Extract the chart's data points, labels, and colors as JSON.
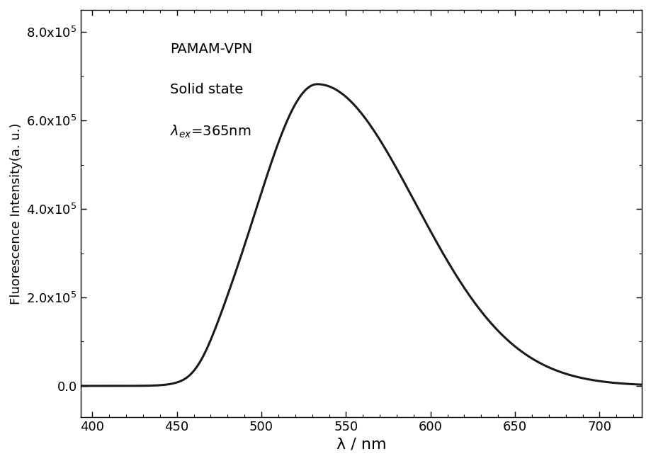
{
  "title": "",
  "xlabel": "λ / nm",
  "ylabel": "Fluorescence Intensity(a. u.)",
  "annotation_line1": "PAMAM-VPN",
  "annotation_line2": "Solid state",
  "annotation_line3": "$\\lambda_{ex}$=365nm",
  "xlim": [
    393,
    725
  ],
  "ylim": [
    -70000.0,
    850000.0
  ],
  "peak_wavelength": 533,
  "peak_intensity": 682000.0,
  "background_color": "#ffffff",
  "line_color": "#1a1a1a",
  "yticks": [
    0,
    200000.0,
    400000.0,
    600000.0,
    800000.0
  ],
  "xticks": [
    400,
    450,
    500,
    550,
    600,
    650,
    700
  ],
  "figsize": [
    9.2,
    6.51
  ],
  "dpi": 100
}
